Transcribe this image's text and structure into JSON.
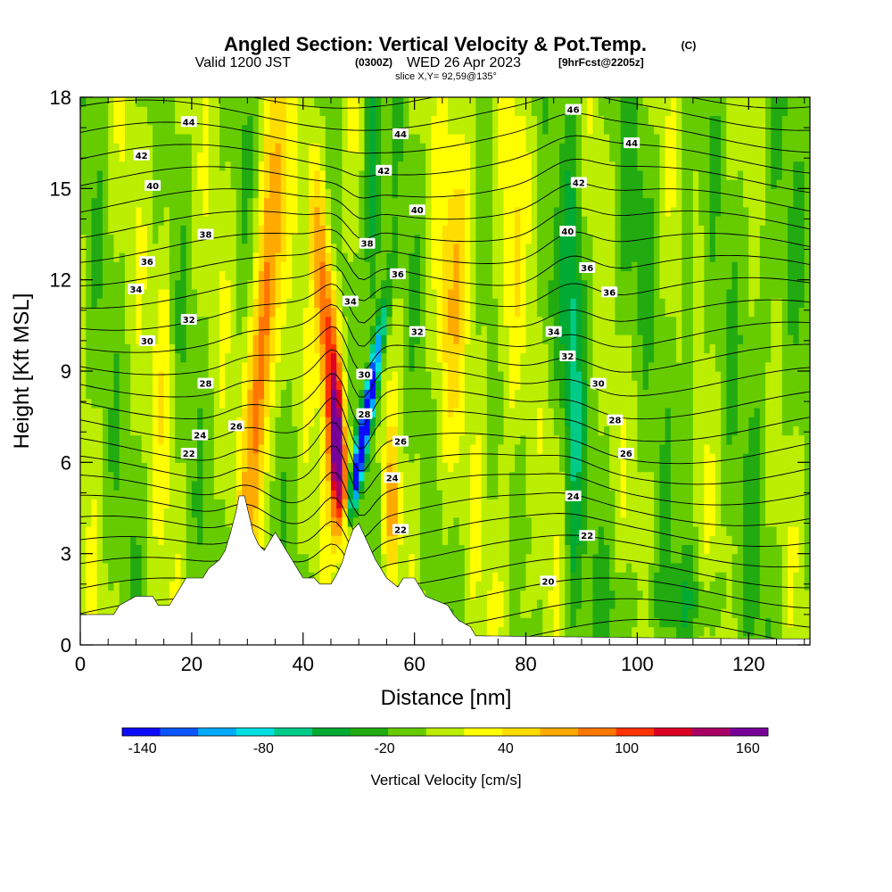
{
  "header": {
    "title": "Angled Section: Vertical Velocity & Pot.Temp.",
    "copyright": "(C)",
    "valid_prefix": "Valid 1200 JST",
    "valid_utc": "(0300Z)",
    "valid_date": "WED 26 Apr 2023",
    "forecast": "[9hrFcst@2205z]",
    "slice": "slice X,Y= 92,59@135°"
  },
  "chart_data": {
    "type": "heatmap",
    "xlabel": "Distance [nm]",
    "ylabel": "Height [Kft MSL]",
    "xlim": [
      0,
      131
    ],
    "ylim": [
      0,
      18
    ],
    "xticks": [
      0,
      20,
      40,
      60,
      80,
      100,
      120
    ],
    "yticks": [
      0,
      3,
      6,
      9,
      12,
      15,
      18
    ],
    "colorbar": {
      "label": "Vertical Velocity [cm/s]",
      "min": -150,
      "max": 170,
      "step": 20,
      "ticks": [
        -140,
        -80,
        -20,
        40,
        100,
        160
      ],
      "colors": [
        "#0a0aff",
        "#0a55ff",
        "#00aaff",
        "#00e0e0",
        "#00cc88",
        "#00aa33",
        "#22aa11",
        "#66cc00",
        "#bbee00",
        "#ffff00",
        "#ffdd00",
        "#ffaa00",
        "#ff7700",
        "#ff3300",
        "#dd0022",
        "#aa0066",
        "#770099"
      ]
    },
    "contour_labels": [
      {
        "x": 19.5,
        "y": 17.2,
        "text": "44"
      },
      {
        "x": 57.5,
        "y": 16.8,
        "text": "44"
      },
      {
        "x": 88.5,
        "y": 17.6,
        "text": "46"
      },
      {
        "x": 99,
        "y": 16.5,
        "text": "44"
      },
      {
        "x": 11,
        "y": 16.1,
        "text": "42"
      },
      {
        "x": 54.5,
        "y": 15.6,
        "text": "42"
      },
      {
        "x": 89.5,
        "y": 15.2,
        "text": "42"
      },
      {
        "x": 13,
        "y": 15.1,
        "text": "40"
      },
      {
        "x": 60.5,
        "y": 14.3,
        "text": "40"
      },
      {
        "x": 87.5,
        "y": 13.6,
        "text": "40"
      },
      {
        "x": 22.5,
        "y": 13.5,
        "text": "38"
      },
      {
        "x": 51.5,
        "y": 13.2,
        "text": "38"
      },
      {
        "x": 12,
        "y": 12.6,
        "text": "36"
      },
      {
        "x": 57,
        "y": 12.2,
        "text": "36"
      },
      {
        "x": 91,
        "y": 12.4,
        "text": "36"
      },
      {
        "x": 95,
        "y": 11.6,
        "text": "36"
      },
      {
        "x": 10,
        "y": 11.7,
        "text": "34"
      },
      {
        "x": 48.5,
        "y": 11.3,
        "text": "34"
      },
      {
        "x": 85,
        "y": 10.3,
        "text": "34"
      },
      {
        "x": 19.5,
        "y": 10.7,
        "text": "32"
      },
      {
        "x": 60.5,
        "y": 10.3,
        "text": "32"
      },
      {
        "x": 87.5,
        "y": 9.5,
        "text": "32"
      },
      {
        "x": 12,
        "y": 10.0,
        "text": "30"
      },
      {
        "x": 51,
        "y": 8.9,
        "text": "30"
      },
      {
        "x": 93,
        "y": 8.6,
        "text": "30"
      },
      {
        "x": 22.5,
        "y": 8.6,
        "text": "28"
      },
      {
        "x": 51,
        "y": 7.6,
        "text": "28"
      },
      {
        "x": 96,
        "y": 7.4,
        "text": "28"
      },
      {
        "x": 28,
        "y": 7.2,
        "text": "26"
      },
      {
        "x": 57.5,
        "y": 6.7,
        "text": "26"
      },
      {
        "x": 98,
        "y": 6.3,
        "text": "26"
      },
      {
        "x": 21.5,
        "y": 6.9,
        "text": "24"
      },
      {
        "x": 56,
        "y": 5.5,
        "text": "24"
      },
      {
        "x": 88.5,
        "y": 4.9,
        "text": "24"
      },
      {
        "x": 19.5,
        "y": 6.3,
        "text": "22"
      },
      {
        "x": 57.5,
        "y": 3.8,
        "text": "22"
      },
      {
        "x": 91,
        "y": 3.6,
        "text": "22"
      },
      {
        "x": 84,
        "y": 2.1,
        "text": "20"
      }
    ]
  }
}
